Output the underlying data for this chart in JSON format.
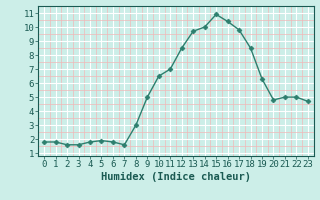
{
  "x": [
    0,
    1,
    2,
    3,
    4,
    5,
    6,
    7,
    8,
    9,
    10,
    11,
    12,
    13,
    14,
    15,
    16,
    17,
    18,
    19,
    20,
    21,
    22,
    23
  ],
  "y": [
    1.8,
    1.8,
    1.6,
    1.6,
    1.8,
    1.9,
    1.8,
    1.6,
    3.0,
    5.0,
    6.5,
    7.0,
    8.5,
    9.7,
    10.0,
    10.9,
    10.4,
    9.8,
    8.5,
    6.3,
    4.8,
    5.0,
    5.0,
    4.7
  ],
  "line_color": "#2d7f6e",
  "marker": "D",
  "marker_size": 2.5,
  "bg_color": "#cceee8",
  "grid_major_color": "#ffffff",
  "grid_minor_color": "#f0b8b8",
  "xlabel": "Humidex (Indice chaleur)",
  "xlabel_fontsize": 7.5,
  "xlabel_color": "#1a5a52",
  "tick_color": "#1a5a52",
  "tick_fontsize": 6.5,
  "ylim": [
    0.8,
    11.5
  ],
  "xlim": [
    -0.5,
    23.5
  ],
  "yticks": [
    1,
    2,
    3,
    4,
    5,
    6,
    7,
    8,
    9,
    10,
    11
  ],
  "xticks": [
    0,
    1,
    2,
    3,
    4,
    5,
    6,
    7,
    8,
    9,
    10,
    11,
    12,
    13,
    14,
    15,
    16,
    17,
    18,
    19,
    20,
    21,
    22,
    23
  ]
}
